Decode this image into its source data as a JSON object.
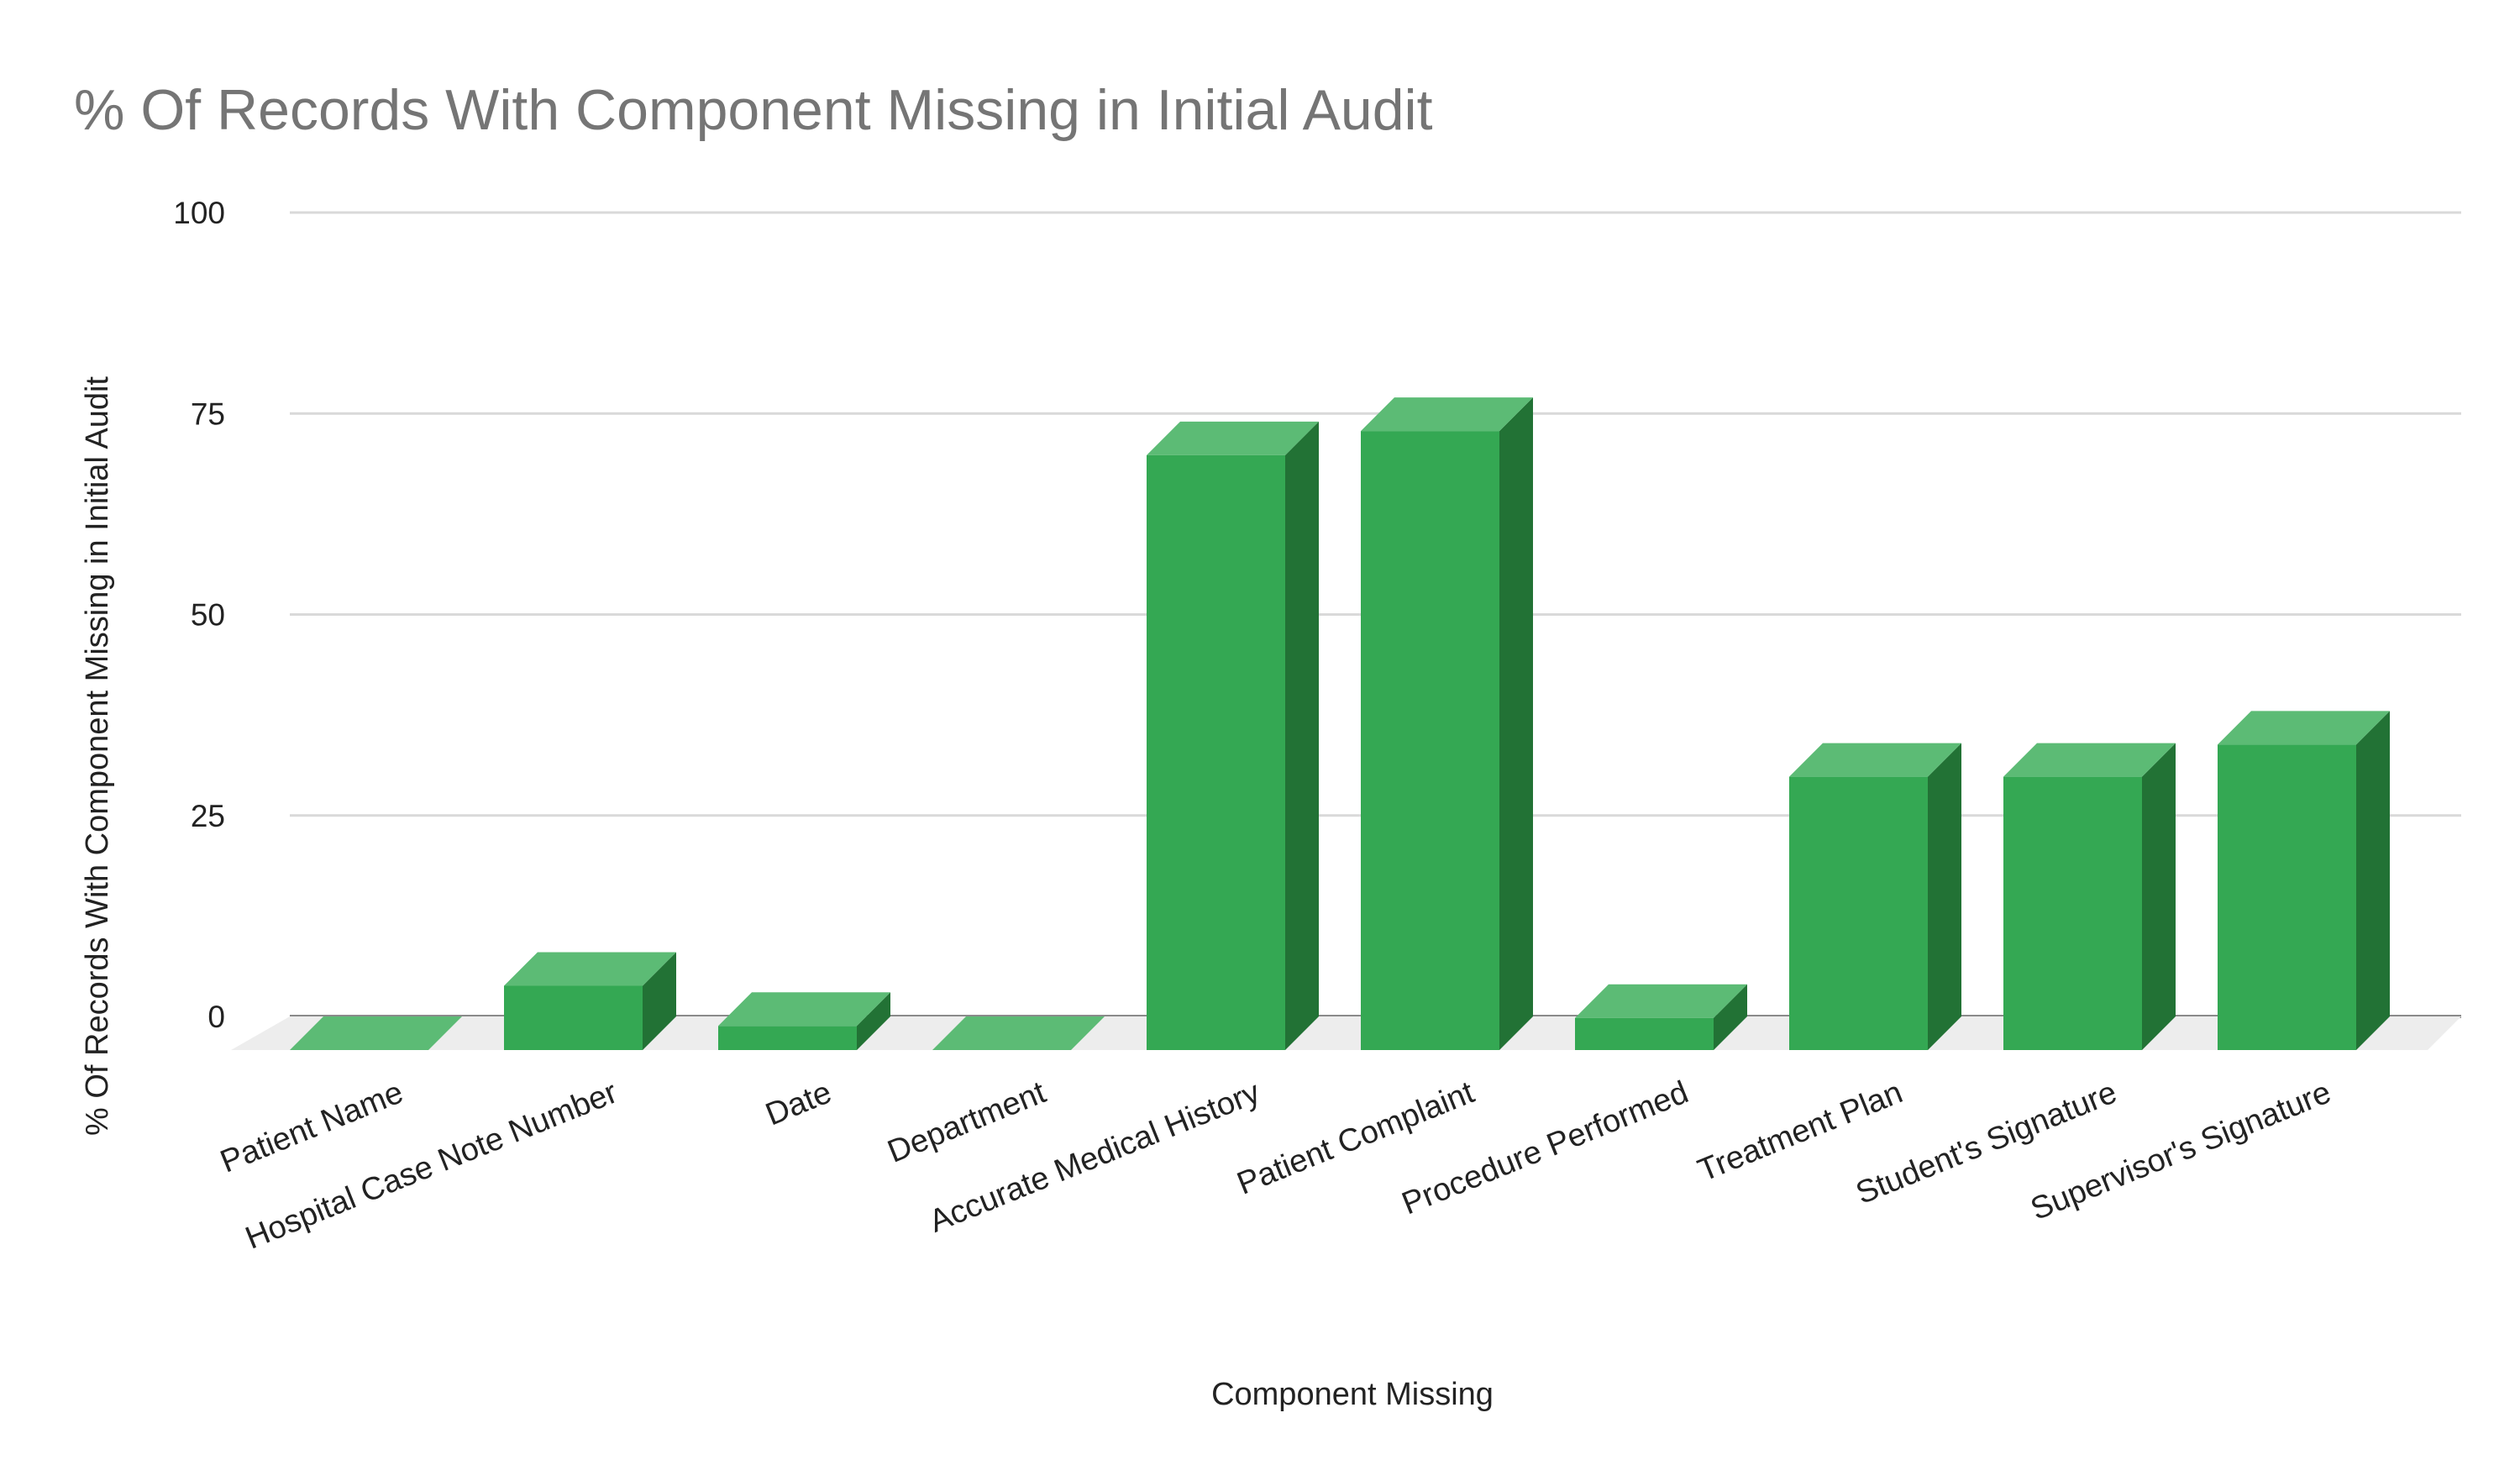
{
  "chart_data": {
    "type": "bar",
    "style": "3d",
    "title": "% Of Records With Component Missing in Initial Audit",
    "xlabel": "Component Missing",
    "ylabel": "% Of Records With Component Missing in Initial Audit",
    "ylim": [
      0,
      100
    ],
    "yticks": [
      "0",
      "25",
      "50",
      "75",
      "100"
    ],
    "grid": true,
    "legend": "none",
    "categories": [
      "Patient Name",
      "Hospital Case Note Number",
      "Date",
      "Department",
      "Accurate Medical History",
      "Patient Complaint",
      "Procedure Performed",
      "Treatment Plan",
      "Student's Signature",
      "Supervisor's Signature"
    ],
    "values": [
      0,
      8,
      3,
      0,
      74,
      77,
      4,
      34,
      34,
      38
    ],
    "colors": {
      "bar_front": "#34a853",
      "bar_top": "#5cbb75",
      "bar_side": "#227235",
      "floor": "#ededed"
    }
  }
}
